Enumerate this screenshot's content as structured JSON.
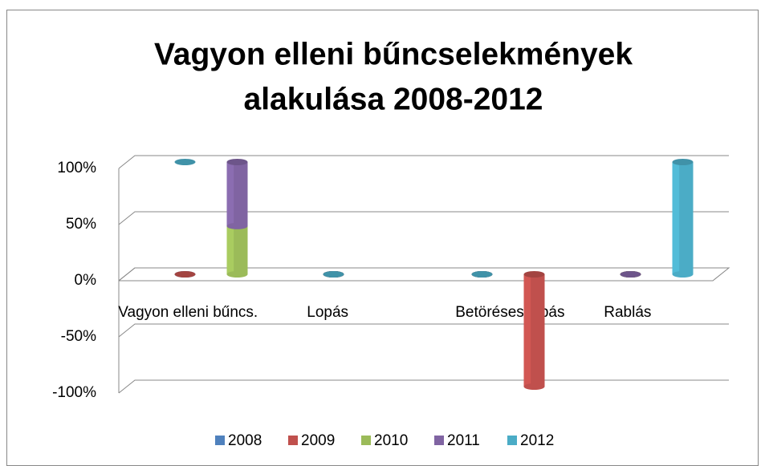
{
  "chart_data": {
    "type": "bar",
    "stacked": true,
    "title": [
      "Vagyon elleni bűncselekmények",
      "alakulása 2008-2012"
    ],
    "categories": [
      "Vagyon elleni bűncs.",
      "Lopás",
      "Betöréses lopás",
      "Rablás"
    ],
    "series": [
      {
        "name": "2008",
        "color": "#4f81bd",
        "values": [
          0,
          0,
          0,
          0
        ]
      },
      {
        "name": "2009",
        "color": "#c0504d",
        "values": [
          0,
          0,
          -100,
          0
        ]
      },
      {
        "name": "2010",
        "color": "#9bbb59",
        "values": [
          43,
          0,
          0,
          0
        ]
      },
      {
        "name": "2011",
        "color": "#8064a2",
        "values": [
          57,
          0,
          0,
          0
        ]
      },
      {
        "name": "2012",
        "color": "#4bacc6",
        "values": [
          0,
          0,
          0,
          100
        ]
      }
    ],
    "ylim": [
      -100,
      100
    ],
    "yticks": [
      {
        "value": -100,
        "label": "-100%"
      },
      {
        "value": -50,
        "label": "-50%"
      },
      {
        "value": 0,
        "label": "0%"
      },
      {
        "value": 50,
        "label": "50%"
      },
      {
        "value": 100,
        "label": "100%"
      }
    ],
    "grid": true,
    "legend": "bottom"
  }
}
